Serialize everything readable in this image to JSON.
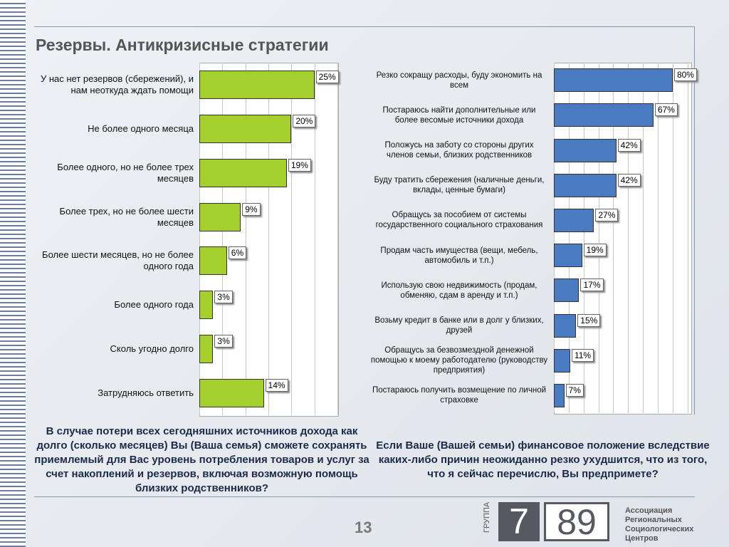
{
  "title": "Резервы. Антикризисные стратегии",
  "chart_data": [
    {
      "type": "bar",
      "orientation": "horizontal",
      "categories": [
        "У нас нет резервов (сбережений), и нам неоткуда ждать помощи",
        "Не более одного месяца",
        "Более одного, но не более трех месяцев",
        "Более трех, но не более шести месяцев",
        "Более шести месяцев, но не более одного года",
        "Более одного года",
        "Сколь угодно долго",
        "Затрудняюсь ответить"
      ],
      "values": [
        25,
        20,
        19,
        9,
        6,
        3,
        3,
        14
      ],
      "value_labels": [
        "25%",
        "20%",
        "19%",
        "9%",
        "6%",
        "3%",
        "3%",
        "14%"
      ],
      "color": "#a4cf2e",
      "xlim": [
        0,
        30
      ],
      "xticks": [
        0,
        5,
        10,
        15,
        20,
        25,
        30
      ],
      "grid": true,
      "question": "В случае потери всех сегодняшних источников дохода как долго (сколько месяцев) Вы (Ваша семья) сможете сохранять приемлемый для Вас уровень потребления товаров и услуг за счет накоплений и резервов, включая возможную помощь близких родственников?"
    },
    {
      "type": "bar",
      "orientation": "horizontal",
      "categories": [
        "Резко сокращу расходы, буду экономить на всем",
        "Постараюсь найти дополнительные или более весомые источники дохода",
        "Положусь на заботу со стороны других членов семьи, близких родственников",
        "Буду тратить сбережения (наличные деньги, вклады, ценные бумаги)",
        "Обращусь за пособием от системы государственного социального страхования",
        "Продам часть имущества (вещи, мебель, автомобиль и т.п.)",
        "Использую свою недвижимость (продам, обменяю, сдам в аренду и т.п.)",
        "Возьму кредит в банке или в долг у близких, друзей",
        "Обращусь за безвозмездной денежной помощью к моему работодателю (руководству предприятия)",
        "Постараюсь получить возмещение по личной страховке"
      ],
      "values": [
        80,
        67,
        42,
        42,
        27,
        19,
        17,
        15,
        11,
        7
      ],
      "value_labels": [
        "80%",
        "67%",
        "42%",
        "42%",
        "27%",
        "19%",
        "17%",
        "15%",
        "11%",
        "7%"
      ],
      "color": "#4a7bc0",
      "xlim": [
        0,
        92
      ],
      "xticks": [
        0,
        10,
        20,
        30,
        40,
        50,
        60,
        70,
        80,
        90
      ],
      "grid": true,
      "question": "Если Ваше (Вашей семьи) финансовое положение вследствие каких-либо причин неожиданно резко ухудшится, что из того, что я сейчас перечислю, Вы предпримете?"
    }
  ],
  "footer": {
    "page": "13",
    "logo_group": "ГРУППА",
    "logo_7": "7",
    "logo_89": "89",
    "logo_text": "Ассоциация Региональных Социологических Центров"
  }
}
